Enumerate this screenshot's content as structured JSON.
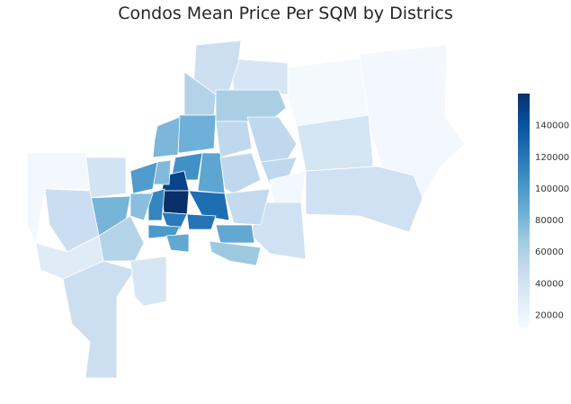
{
  "title": "Condos Mean Price Per SQM by Districs",
  "colormap": "Blues",
  "colorbar": {
    "min": 12000,
    "max": 160000,
    "ticks": [
      "20000",
      "40000",
      "60000",
      "80000",
      "100000",
      "120000",
      "140000"
    ]
  },
  "district_values": [
    15000,
    42000,
    14000,
    38000,
    36000,
    44000,
    58000,
    62000,
    85000,
    52000,
    52000,
    80000,
    105000,
    92000,
    52000,
    52000,
    16000,
    42000,
    50000,
    90000,
    68000,
    148000,
    160000,
    125000,
    122000,
    118000,
    100000,
    90000,
    112000,
    78000,
    98000,
    75000,
    40000,
    82000,
    45000,
    15000,
    30000,
    44000,
    58000,
    36000
  ]
}
